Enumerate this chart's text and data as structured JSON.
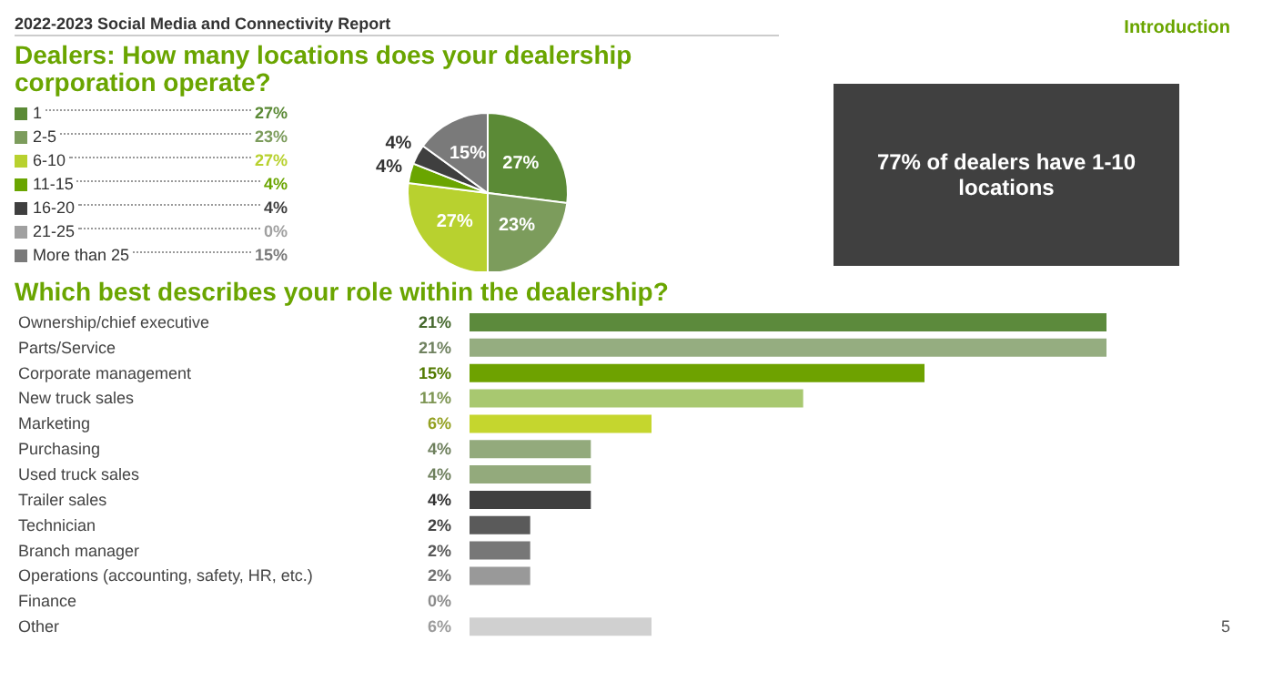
{
  "chart_data": [
    {
      "type": "pie",
      "title": "Dealers: How many locations does your dealership corporation operate?",
      "annotations": [
        "2022-2023 Social Media and Connectivity Report",
        "Introduction"
      ],
      "legend": "left",
      "categories": [
        "1",
        "2-5",
        "6-10",
        "11-15",
        "16-20",
        "21-25",
        "More than 25"
      ],
      "values": [
        27,
        23,
        27,
        4,
        4,
        0,
        15
      ],
      "value_labels": [
        "27%",
        "23%",
        "27%",
        "4%",
        "4%",
        "0%",
        "15%"
      ],
      "colors": [
        "#5b8a36",
        "#7c9c5c",
        "#b8d12f",
        "#6aa500",
        "#3f3f3f",
        "#a0a0a0",
        "#7a7a7a"
      ]
    },
    {
      "type": "bar",
      "orientation": "horizontal",
      "title": "Which best describes your role within the dealership?",
      "annotations": [
        "5"
      ],
      "categories": [
        "Ownership/chief executive",
        "Parts/Service",
        "Corporate management",
        "New truck sales",
        "Marketing",
        "Purchasing",
        "Used truck sales",
        "Trailer sales",
        "Technician",
        "Branch manager",
        "Operations (accounting, safety, HR, etc.)",
        "Finance",
        "Other"
      ],
      "values": [
        21,
        21,
        15,
        11,
        6,
        4,
        4,
        4,
        2,
        2,
        2,
        0,
        6
      ],
      "value_labels": [
        "21%",
        "21%",
        "15%",
        "11%",
        "6%",
        "4%",
        "4%",
        "4%",
        "2%",
        "2%",
        "2%",
        "0%",
        "6%"
      ],
      "colors": [
        "#5c8a3c",
        "#95ad80",
        "#6ea200",
        "#a8c870",
        "#c5d62e",
        "#93aa7c",
        "#93aa7c",
        "#404040",
        "#5a5a5a",
        "#777777",
        "#999999",
        "#bbbbbb",
        "#d0d0d0"
      ]
    },
    {
      "type": "other",
      "annotations": [
        "77% of dealers have 1-10 locations"
      ]
    }
  ]
}
